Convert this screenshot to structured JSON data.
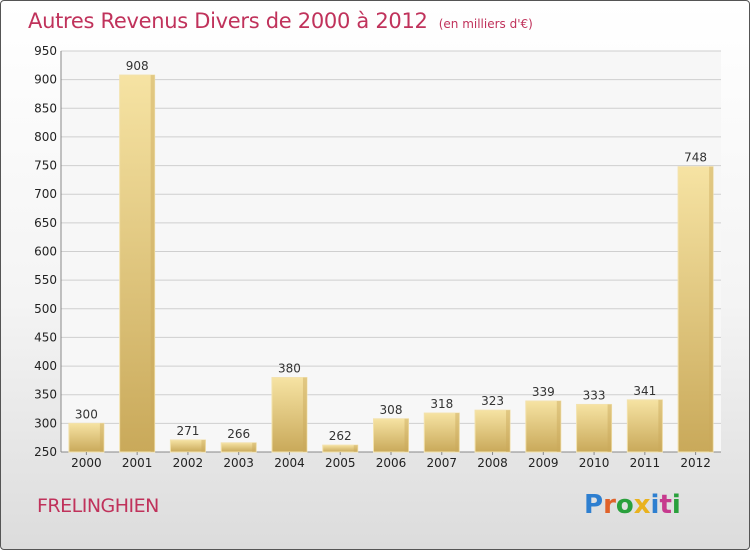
{
  "chart_data": {
    "type": "bar",
    "title": "Autres Revenus Divers de 2000 à 2012",
    "unit": "(en milliers d'€)",
    "categories": [
      "2000",
      "2001",
      "2002",
      "2003",
      "2004",
      "2005",
      "2006",
      "2007",
      "2008",
      "2009",
      "2010",
      "2011",
      "2012"
    ],
    "values": [
      300,
      908,
      271,
      266,
      380,
      262,
      308,
      318,
      323,
      339,
      333,
      341,
      748
    ],
    "ylim": [
      250,
      950
    ],
    "yticks": [
      250,
      300,
      350,
      400,
      450,
      500,
      550,
      600,
      650,
      700,
      750,
      800,
      850,
      900,
      950
    ],
    "grid": true,
    "bar_color": "#e8c97a",
    "bar_color_light": "#f6e3a3",
    "bar_color_dark": "#c9a95a"
  },
  "place_name": "FRELINGHIEN",
  "logo": {
    "letters": [
      "P",
      "r",
      "o",
      "x",
      "i",
      "t",
      "i"
    ]
  },
  "colors": {
    "title": "#c0325b",
    "grid": "#cfcfcf"
  }
}
